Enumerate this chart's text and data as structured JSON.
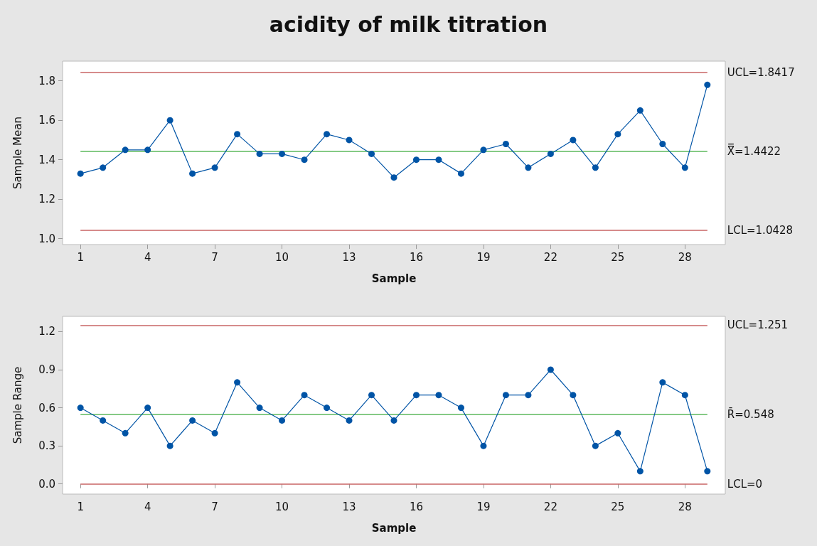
{
  "chart_data": [
    {
      "type": "line",
      "title": "acidity of milk titration",
      "xlabel": "Sample",
      "ylabel": "Sample Mean",
      "x": [
        1,
        2,
        3,
        4,
        5,
        6,
        7,
        8,
        9,
        10,
        11,
        12,
        13,
        14,
        15,
        16,
        17,
        18,
        19,
        20,
        21,
        22,
        23,
        24,
        25,
        26,
        27,
        28,
        29
      ],
      "series": [
        {
          "color": "#0054a6",
          "values": [
            1.33,
            1.36,
            1.45,
            1.45,
            1.6,
            1.33,
            1.36,
            1.53,
            1.43,
            1.43,
            1.4,
            1.53,
            1.5,
            1.43,
            1.31,
            1.4,
            1.4,
            1.33,
            1.45,
            1.48,
            1.36,
            1.43,
            1.5,
            1.36,
            1.53,
            1.65,
            1.48,
            1.36,
            1.78
          ]
        }
      ],
      "xlim": [
        0.2,
        29.8
      ],
      "xticks": [
        1,
        4,
        7,
        10,
        13,
        16,
        19,
        22,
        25,
        28
      ],
      "ylim": [
        0.97,
        1.9
      ],
      "yticks": [
        {
          "value": 1,
          "label": "1.0"
        },
        1.2,
        1.4,
        1.6,
        1.8
      ],
      "ref_lines": [
        {
          "axis": "y",
          "value": 1.8417,
          "label": "UCL=1.8417",
          "color": "#c86464"
        },
        {
          "axis": "y",
          "value": 1.4422,
          "label": "X̿=1.4422",
          "color": "#5cb85c"
        },
        {
          "axis": "y",
          "value": 1.0428,
          "label": "LCL=1.0428",
          "color": "#c86464"
        }
      ],
      "grid": false,
      "marker": "circle",
      "line_style": "solid"
    },
    {
      "type": "line",
      "xlabel": "Sample",
      "ylabel": "Sample Range",
      "x": [
        1,
        2,
        3,
        4,
        5,
        6,
        7,
        8,
        9,
        10,
        11,
        12,
        13,
        14,
        15,
        16,
        17,
        18,
        19,
        20,
        21,
        22,
        23,
        24,
        25,
        26,
        27,
        28,
        29
      ],
      "series": [
        {
          "color": "#0054a6",
          "values": [
            0.6,
            0.5,
            0.4,
            0.6,
            0.3,
            0.5,
            0.4,
            0.8,
            0.6,
            0.5,
            0.7,
            0.6,
            0.5,
            0.7,
            0.5,
            0.7,
            0.7,
            0.6,
            0.3,
            0.7,
            0.7,
            0.9,
            0.7,
            0.3,
            0.4,
            0.1,
            0.8,
            0.7,
            0.1
          ]
        }
      ],
      "xlim": [
        0.2,
        29.8
      ],
      "xticks": [
        1,
        4,
        7,
        10,
        13,
        16,
        19,
        22,
        25,
        28
      ],
      "ylim": [
        -0.08,
        1.32
      ],
      "yticks": [
        {
          "value": 0,
          "label": "0.0"
        },
        0.3,
        0.6,
        0.9,
        1.2
      ],
      "ref_lines": [
        {
          "axis": "y",
          "value": 1.251,
          "label": "UCL=1.251",
          "color": "#c86464"
        },
        {
          "axis": "y",
          "value": 0.548,
          "label": "R̄=0.548",
          "color": "#5cb85c"
        },
        {
          "axis": "y",
          "value": 0,
          "label": "LCL=0",
          "color": "#c86464"
        }
      ],
      "grid": false,
      "marker": "circle",
      "line_style": "solid"
    }
  ]
}
